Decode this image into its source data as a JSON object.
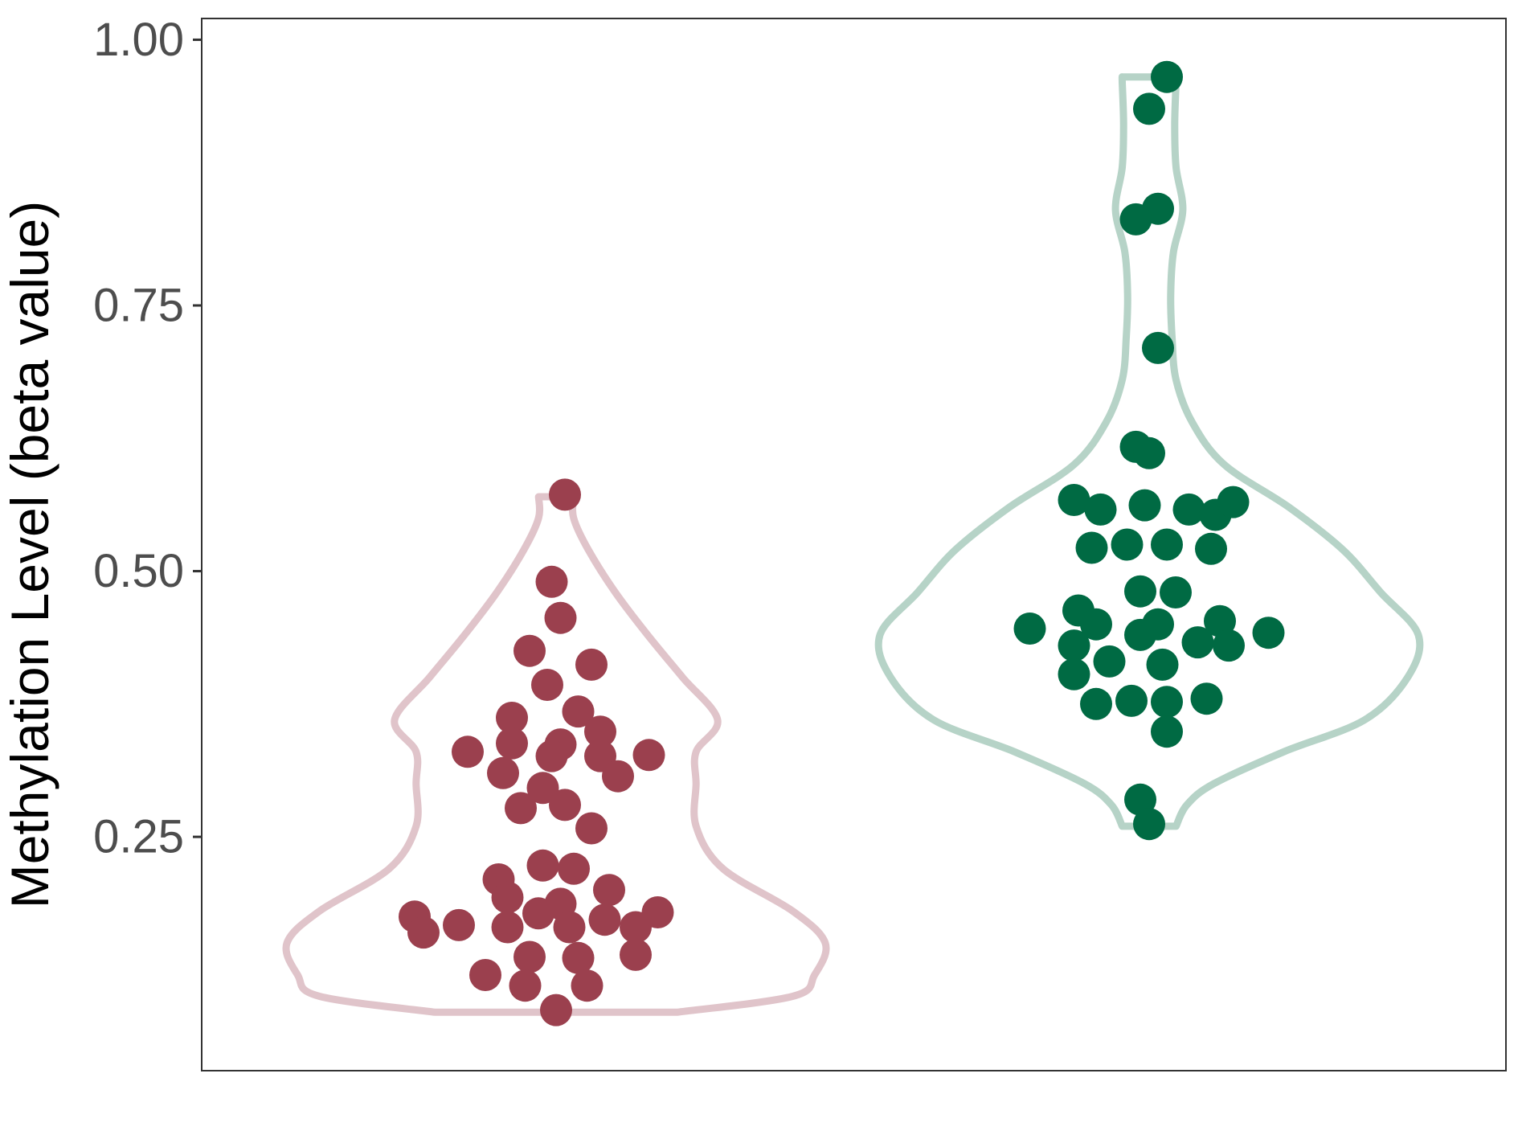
{
  "chart_data": {
    "type": "violin",
    "ylabel": "Methylation Level (beta value)",
    "ylim": [
      0.03,
      1.02
    ],
    "yticks": [
      {
        "value": 0.25,
        "label": "0.25"
      },
      {
        "value": 0.5,
        "label": "0.50"
      },
      {
        "value": 0.75,
        "label": "0.75"
      },
      {
        "value": 1.0,
        "label": "1.00"
      }
    ],
    "grid": false,
    "legend": "none",
    "series": [
      {
        "point_color": "#9b404e",
        "outline_color": "#e0c4ca",
        "range": [
          0.085,
          0.57
        ],
        "violin_profile": [
          [
            0.085,
            0.45
          ],
          [
            0.1,
            0.88
          ],
          [
            0.12,
            0.96
          ],
          [
            0.15,
            1.0
          ],
          [
            0.18,
            0.88
          ],
          [
            0.22,
            0.62
          ],
          [
            0.26,
            0.52
          ],
          [
            0.3,
            0.52
          ],
          [
            0.33,
            0.52
          ],
          [
            0.36,
            0.6
          ],
          [
            0.4,
            0.47
          ],
          [
            0.44,
            0.34
          ],
          [
            0.48,
            0.22
          ],
          [
            0.52,
            0.12
          ],
          [
            0.55,
            0.065
          ],
          [
            0.57,
            0.065
          ]
        ],
        "points": [
          {
            "x": -0.2,
            "y": 0.33
          },
          {
            "x": -0.32,
            "y": 0.175
          },
          {
            "x": -0.3,
            "y": 0.16
          },
          {
            "x": -0.22,
            "y": 0.167
          },
          {
            "x": -0.16,
            "y": 0.12
          },
          {
            "x": -0.1,
            "y": 0.362
          },
          {
            "x": -0.1,
            "y": 0.338
          },
          {
            "x": -0.12,
            "y": 0.31
          },
          {
            "x": -0.08,
            "y": 0.277
          },
          {
            "x": -0.03,
            "y": 0.296
          },
          {
            "x": -0.06,
            "y": 0.425
          },
          {
            "x": -0.02,
            "y": 0.393
          },
          {
            "x": -0.01,
            "y": 0.49
          },
          {
            "x": 0.01,
            "y": 0.456
          },
          {
            "x": 0.02,
            "y": 0.572
          },
          {
            "x": 0.05,
            "y": 0.368
          },
          {
            "x": 0.01,
            "y": 0.337
          },
          {
            "x": -0.01,
            "y": 0.326
          },
          {
            "x": 0.02,
            "y": 0.28
          },
          {
            "x": 0.08,
            "y": 0.412
          },
          {
            "x": 0.1,
            "y": 0.349
          },
          {
            "x": 0.1,
            "y": 0.326
          },
          {
            "x": 0.14,
            "y": 0.307
          },
          {
            "x": 0.08,
            "y": 0.258
          },
          {
            "x": 0.21,
            "y": 0.327
          },
          {
            "x": -0.13,
            "y": 0.21
          },
          {
            "x": -0.11,
            "y": 0.193
          },
          {
            "x": -0.03,
            "y": 0.223
          },
          {
            "x": 0.04,
            "y": 0.22
          },
          {
            "x": 0.12,
            "y": 0.2
          },
          {
            "x": 0.01,
            "y": 0.187
          },
          {
            "x": -0.04,
            "y": 0.178
          },
          {
            "x": -0.11,
            "y": 0.165
          },
          {
            "x": 0.03,
            "y": 0.165
          },
          {
            "x": 0.11,
            "y": 0.172
          },
          {
            "x": 0.18,
            "y": 0.165
          },
          {
            "x": 0.23,
            "y": 0.179
          },
          {
            "x": -0.06,
            "y": 0.137
          },
          {
            "x": 0.05,
            "y": 0.136
          },
          {
            "x": 0.18,
            "y": 0.139
          },
          {
            "x": -0.07,
            "y": 0.11
          },
          {
            "x": 0.07,
            "y": 0.11
          },
          {
            "x": 0.0,
            "y": 0.087
          }
        ]
      },
      {
        "point_color": "#006a43",
        "outline_color": "#b6d3c7",
        "range": [
          0.26,
          0.965
        ],
        "violin_profile": [
          [
            0.26,
            0.1
          ],
          [
            0.28,
            0.14
          ],
          [
            0.3,
            0.24
          ],
          [
            0.33,
            0.5
          ],
          [
            0.36,
            0.8
          ],
          [
            0.4,
            0.96
          ],
          [
            0.44,
            1.0
          ],
          [
            0.48,
            0.86
          ],
          [
            0.52,
            0.72
          ],
          [
            0.56,
            0.52
          ],
          [
            0.6,
            0.28
          ],
          [
            0.64,
            0.16
          ],
          [
            0.68,
            0.1
          ],
          [
            0.72,
            0.085
          ],
          [
            0.76,
            0.08
          ],
          [
            0.8,
            0.09
          ],
          [
            0.84,
            0.125
          ],
          [
            0.88,
            0.1
          ],
          [
            0.92,
            0.095
          ],
          [
            0.96,
            0.1
          ],
          [
            0.965,
            0.1
          ]
        ],
        "points": [
          {
            "x": 0.04,
            "y": 0.965
          },
          {
            "x": 0.0,
            "y": 0.935
          },
          {
            "x": 0.02,
            "y": 0.841
          },
          {
            "x": -0.03,
            "y": 0.831
          },
          {
            "x": 0.02,
            "y": 0.71
          },
          {
            "x": -0.03,
            "y": 0.617
          },
          {
            "x": 0.0,
            "y": 0.611
          },
          {
            "x": -0.17,
            "y": 0.567
          },
          {
            "x": -0.11,
            "y": 0.558
          },
          {
            "x": -0.01,
            "y": 0.562
          },
          {
            "x": 0.09,
            "y": 0.558
          },
          {
            "x": 0.15,
            "y": 0.553
          },
          {
            "x": 0.19,
            "y": 0.565
          },
          {
            "x": -0.13,
            "y": 0.522
          },
          {
            "x": -0.05,
            "y": 0.525
          },
          {
            "x": 0.04,
            "y": 0.525
          },
          {
            "x": 0.14,
            "y": 0.521
          },
          {
            "x": -0.02,
            "y": 0.481
          },
          {
            "x": 0.06,
            "y": 0.48
          },
          {
            "x": -0.16,
            "y": 0.463
          },
          {
            "x": -0.12,
            "y": 0.45
          },
          {
            "x": 0.02,
            "y": 0.45
          },
          {
            "x": 0.16,
            "y": 0.453
          },
          {
            "x": -0.27,
            "y": 0.446
          },
          {
            "x": -0.02,
            "y": 0.44
          },
          {
            "x": 0.11,
            "y": 0.433
          },
          {
            "x": 0.18,
            "y": 0.43
          },
          {
            "x": 0.27,
            "y": 0.442
          },
          {
            "x": -0.17,
            "y": 0.43
          },
          {
            "x": -0.09,
            "y": 0.415
          },
          {
            "x": 0.03,
            "y": 0.412
          },
          {
            "x": -0.17,
            "y": 0.403
          },
          {
            "x": -0.12,
            "y": 0.375
          },
          {
            "x": -0.04,
            "y": 0.378
          },
          {
            "x": 0.04,
            "y": 0.377
          },
          {
            "x": 0.13,
            "y": 0.38
          },
          {
            "x": 0.04,
            "y": 0.349
          },
          {
            "x": -0.02,
            "y": 0.285
          },
          {
            "x": 0.0,
            "y": 0.262
          }
        ]
      }
    ]
  }
}
